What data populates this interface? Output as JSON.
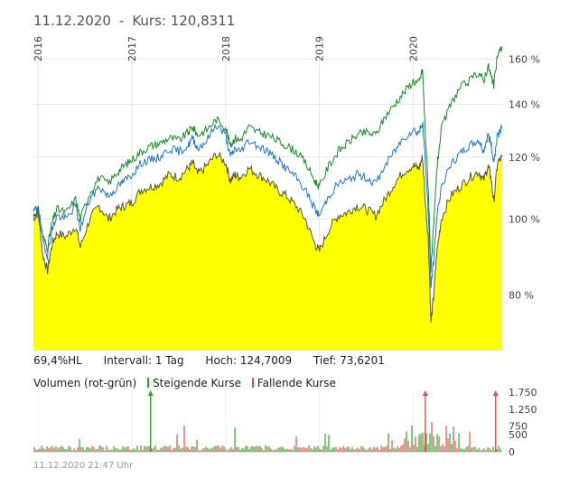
{
  "header": {
    "date": "11.12.2020",
    "separator": "-",
    "price_label": "Kurs: 120,8311"
  },
  "info_bar": {
    "range": "69,4%HL",
    "interval": "Intervall: 1 Tag",
    "high": "Hoch: 124,7009",
    "low": "Tief: 73,6201"
  },
  "volume_legend": {
    "title": "Volumen (rot-grün)",
    "rising": "Steigende Kurse",
    "falling": "Fallende Kurse"
  },
  "footer": {
    "timestamp": "11.12.2020 21:47 Uhr"
  },
  "colors": {
    "fill_main": "#ffff00",
    "line_main": "#555555",
    "line_blue": "#1f78c8",
    "line_green": "#1a8a2a",
    "vol_up": "#2aaa2a",
    "vol_down": "#e05050"
  },
  "chart_data": [
    {
      "type": "area",
      "scale": "log",
      "x_ticks": [
        "2016",
        "2017",
        "2018",
        "2019",
        "2020"
      ],
      "y_ticks": [
        {
          "value": 80,
          "label": "80 %"
        },
        {
          "value": 100,
          "label": "100 %"
        },
        {
          "value": 120,
          "label": "120 %"
        },
        {
          "value": 140,
          "label": "140 %"
        },
        {
          "value": 160,
          "label": "160 %"
        }
      ],
      "ylim": [
        68,
        172
      ],
      "xlim": [
        2015.95,
        2020.95
      ],
      "x": [
        2015.95,
        2016.0,
        2016.05,
        2016.1,
        2016.15,
        2016.2,
        2016.3,
        2016.4,
        2016.45,
        2016.55,
        2016.65,
        2016.75,
        2016.85,
        2016.92,
        2017.0,
        2017.1,
        2017.2,
        2017.3,
        2017.4,
        2017.5,
        2017.6,
        2017.65,
        2017.7,
        2017.8,
        2017.9,
        2018.0,
        2018.05,
        2018.1,
        2018.15,
        2018.25,
        2018.35,
        2018.45,
        2018.55,
        2018.65,
        2018.75,
        2018.85,
        2018.95,
        2019.0,
        2019.1,
        2019.2,
        2019.3,
        2019.4,
        2019.5,
        2019.6,
        2019.7,
        2019.8,
        2019.9,
        2020.0,
        2020.06,
        2020.1,
        2020.13,
        2020.16,
        2020.19,
        2020.22,
        2020.25,
        2020.3,
        2020.4,
        2020.5,
        2020.6,
        2020.7,
        2020.75,
        2020.8,
        2020.83,
        2020.86,
        2020.9,
        2020.95
      ],
      "series": [
        {
          "values": [
            100,
            102,
            90,
            86,
            93,
            96,
            95,
            98,
            92,
            100,
            104,
            100,
            103,
            104,
            105,
            109,
            110,
            111,
            114,
            113,
            116,
            118,
            114,
            117,
            121,
            118,
            112,
            114,
            113,
            116,
            114,
            112,
            109,
            107,
            104,
            100,
            93,
            91,
            97,
            101,
            102,
            104,
            103,
            101,
            106,
            111,
            115,
            117,
            116,
            120,
            105,
            95,
            74,
            80,
            90,
            100,
            107,
            110,
            113,
            115,
            112,
            117,
            113,
            105,
            118,
            120
          ]
        },
        {
          "values": [
            102,
            104,
            94,
            90,
            97,
            101,
            100,
            104,
            97,
            106,
            110,
            107,
            110,
            112,
            114,
            118,
            119,
            120,
            123,
            122,
            124,
            127,
            123,
            126,
            132,
            128,
            120,
            123,
            122,
            126,
            124,
            122,
            119,
            116,
            113,
            109,
            103,
            101,
            107,
            111,
            112,
            114,
            113,
            111,
            117,
            122,
            127,
            130,
            129,
            133,
            118,
            103,
            82,
            89,
            100,
            110,
            117,
            121,
            124,
            126,
            122,
            128,
            125,
            118,
            128,
            131
          ]
        },
        {
          "values": [
            101,
            103,
            95,
            92,
            99,
            103,
            102,
            106,
            100,
            108,
            113,
            111,
            115,
            117,
            119,
            122,
            124,
            125,
            127,
            126,
            129,
            131,
            128,
            130,
            134,
            131,
            124,
            127,
            126,
            131,
            129,
            128,
            126,
            124,
            122,
            118,
            112,
            110,
            117,
            122,
            125,
            128,
            129,
            128,
            135,
            140,
            145,
            150,
            149,
            155,
            128,
            110,
            86,
            98,
            115,
            130,
            140,
            147,
            150,
            154,
            150,
            157,
            152,
            148,
            162,
            166
          ]
        }
      ]
    },
    {
      "type": "bar",
      "y_ticks": [
        {
          "value": 0,
          "label": "0"
        },
        {
          "value": 500,
          "label": "500"
        },
        {
          "value": 750,
          "label": "750"
        },
        {
          "value": 1250,
          "label": "1.250"
        },
        {
          "value": 1750,
          "label": "1.750"
        }
      ],
      "ylim": [
        0,
        1800
      ]
    }
  ]
}
